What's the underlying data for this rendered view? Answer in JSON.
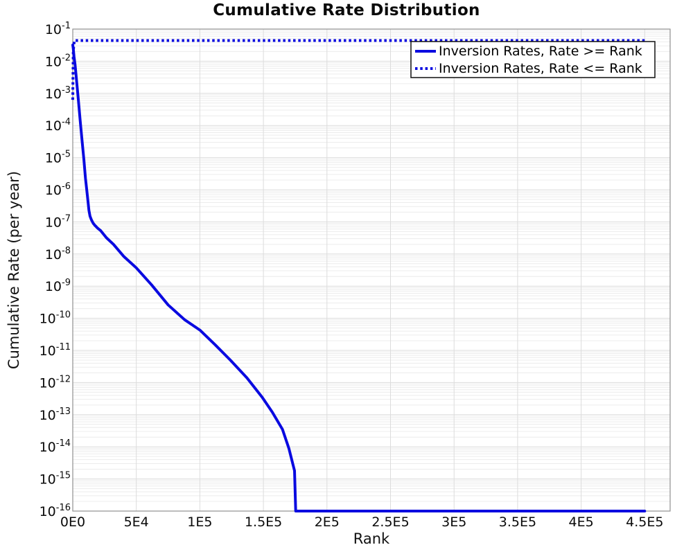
{
  "chart_data": {
    "type": "line",
    "title": "Cumulative Rate Distribution",
    "xlabel": "Rank",
    "ylabel": "Cumulative Rate (per year)",
    "grid": true,
    "y_scale": "log",
    "xlim": [
      0,
      470000
    ],
    "ylim": [
      1e-16,
      0.1
    ],
    "y_tick_exponents": [
      -1,
      -2,
      -3,
      -4,
      -5,
      -6,
      -7,
      -8,
      -9,
      -10,
      -11,
      -12,
      -13,
      -14,
      -15,
      -16
    ],
    "x_ticks": [
      {
        "v": 0,
        "label": "0E0"
      },
      {
        "v": 50000,
        "label": "5E4"
      },
      {
        "v": 100000,
        "label": "1E5"
      },
      {
        "v": 150000,
        "label": "1.5E5"
      },
      {
        "v": 200000,
        "label": "2E5"
      },
      {
        "v": 250000,
        "label": "2.5E5"
      },
      {
        "v": 300000,
        "label": "3E5"
      },
      {
        "v": 350000,
        "label": "3.5E5"
      },
      {
        "v": 400000,
        "label": "4E5"
      },
      {
        "v": 450000,
        "label": "4.5E5"
      }
    ],
    "legend_position": "top-right",
    "colors": {
      "line": "#0a0ae0",
      "grid_major": "#dcdcdc",
      "grid_minor": "#ececec",
      "border": "#909090",
      "legend_border": "#111111"
    },
    "series": [
      {
        "name": "Inversion Rates, Rate >= Rank",
        "style": "solid",
        "points": [
          [
            0,
            0.032
          ],
          [
            400,
            0.025
          ],
          [
            1000,
            0.014
          ],
          [
            1800,
            0.0079
          ],
          [
            2600,
            0.0036
          ],
          [
            3300,
            0.0018
          ],
          [
            4500,
            0.00055
          ],
          [
            5800,
            0.00015
          ],
          [
            7300,
            3.4e-05
          ],
          [
            8700,
            8.9e-06
          ],
          [
            10000,
            2.3e-06
          ],
          [
            11500,
            6.5e-07
          ],
          [
            12700,
            2.3e-07
          ],
          [
            13600,
            1.5e-07
          ],
          [
            14600,
            1.17e-07
          ],
          [
            16000,
            9.2e-08
          ],
          [
            17300,
            7.9e-08
          ],
          [
            19500,
            6.4e-08
          ],
          [
            21800,
            5.4e-08
          ],
          [
            26500,
            3.2e-08
          ],
          [
            32000,
            2e-08
          ],
          [
            40000,
            8.5e-09
          ],
          [
            50000,
            3.7e-09
          ],
          [
            62000,
            1.1e-09
          ],
          [
            75000,
            2.6e-10
          ],
          [
            88000,
            9e-11
          ],
          [
            100000,
            4.3e-11
          ],
          [
            112000,
            1.5e-11
          ],
          [
            124000,
            5e-12
          ],
          [
            137000,
            1.4e-12
          ],
          [
            149000,
            3.5e-13
          ],
          [
            157000,
            1.2e-13
          ],
          [
            165000,
            3.5e-14
          ],
          [
            170000,
            9e-15
          ],
          [
            174500,
            1.8e-15
          ],
          [
            175400,
            1e-16
          ],
          [
            450000,
            1e-16
          ]
        ]
      },
      {
        "name": "Inversion Rates, Rate <= Rank",
        "style": "dotted",
        "points": [
          [
            0,
            0.00063
          ],
          [
            400,
            0.02
          ],
          [
            1200,
            0.044
          ],
          [
            450000,
            0.044
          ]
        ]
      }
    ]
  }
}
